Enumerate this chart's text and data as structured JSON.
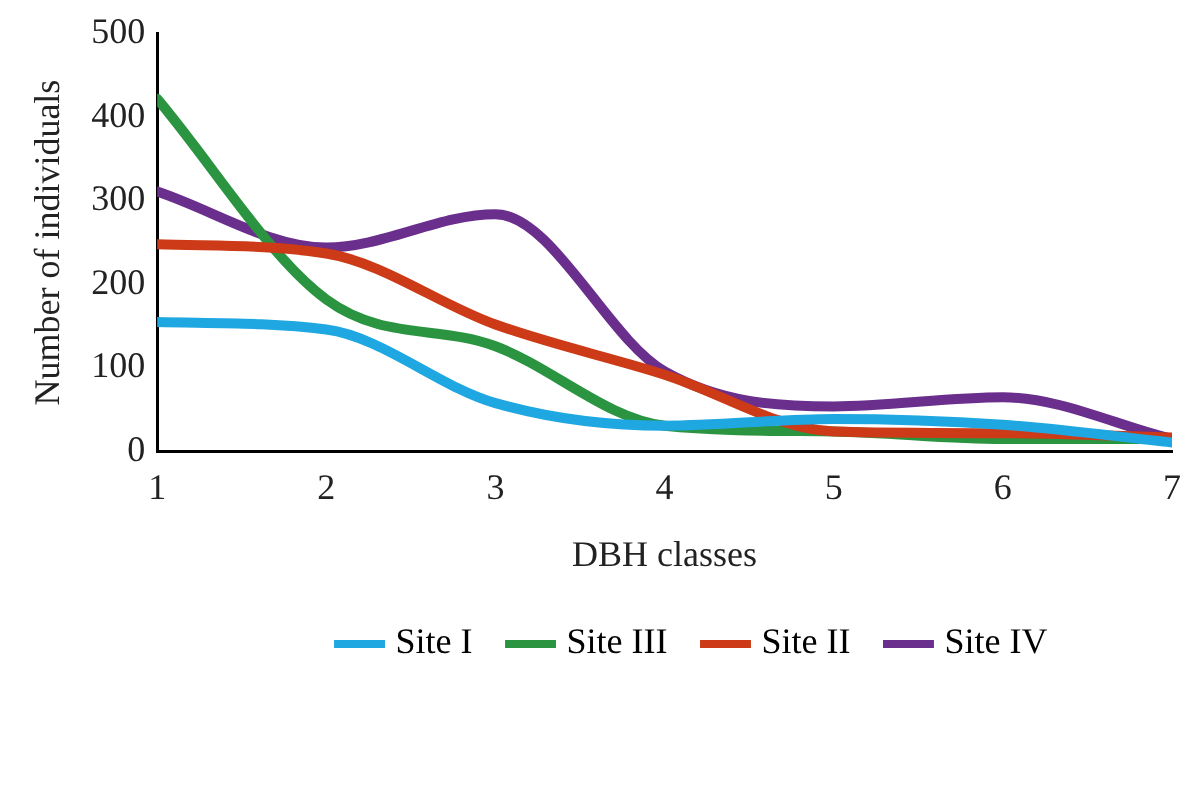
{
  "chart_data": {
    "type": "line",
    "xlabel": "DBH classes",
    "ylabel": "Number of individuals",
    "x": [
      1,
      2,
      3,
      4,
      5,
      6,
      7
    ],
    "series": [
      {
        "name": "Site I",
        "color": "#1ea7e1",
        "values": [
          155,
          146,
          58,
          31,
          39,
          32,
          11
        ]
      },
      {
        "name": "Site II",
        "color": "#cc3a17",
        "values": [
          248,
          237,
          152,
          92,
          24,
          22,
          17
        ]
      },
      {
        "name": "Site III",
        "color": "#2a9440",
        "values": [
          422,
          182,
          126,
          31,
          24,
          15,
          15
        ]
      },
      {
        "name": "Site IV",
        "color": "#6a2e8c",
        "values": [
          311,
          244,
          284,
          96,
          54,
          65,
          15
        ]
      }
    ],
    "xlim": [
      1,
      7
    ],
    "xticks": [
      1,
      2,
      3,
      4,
      5,
      6,
      7
    ],
    "ylim": [
      0,
      500
    ],
    "yticks": [
      0,
      100,
      200,
      300,
      400,
      500
    ],
    "grid": false,
    "legend": "bottom",
    "marker": "none",
    "line_style": "solid"
  }
}
